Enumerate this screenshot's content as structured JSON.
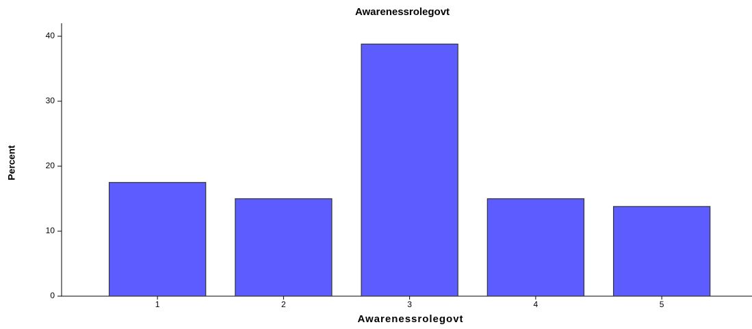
{
  "chart_data": {
    "type": "bar",
    "title": "Awarenessrolegovt",
    "x_label": "Awarenessrolegovt",
    "y_label": "Percent",
    "categories": [
      "1",
      "2",
      "3",
      "4",
      "5"
    ],
    "values": [
      17.5,
      15,
      38.8,
      15,
      13.8
    ],
    "color": "#5d5dff",
    "ylim": [
      0,
      42
    ],
    "yticks": [
      0,
      10,
      20,
      30,
      40
    ],
    "grid": false
  }
}
